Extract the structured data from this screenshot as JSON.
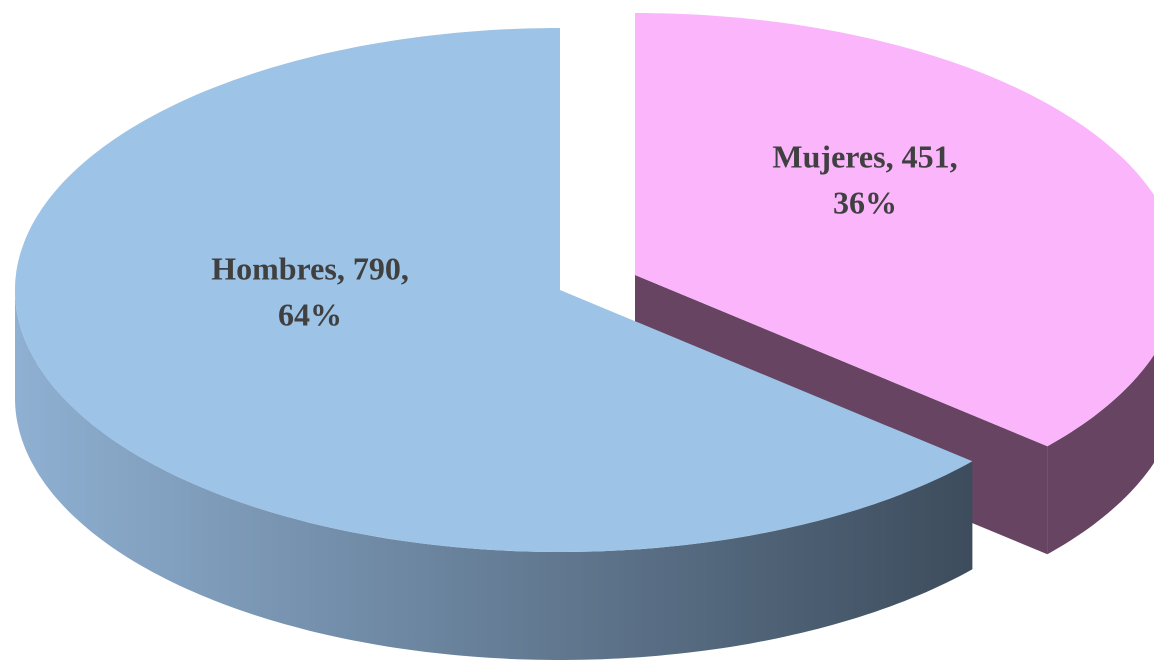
{
  "chart_data": {
    "type": "pie3d",
    "categories": [
      "Mujeres",
      "Hombres"
    ],
    "values": [
      451,
      790
    ],
    "value_labels": [
      [
        "Mujeres, 451,",
        "36%"
      ],
      [
        "Hombres, 790,",
        "64%"
      ]
    ],
    "colors": [
      "#fab5fb",
      "#9dc3e6"
    ],
    "side_colors": [
      "#664462",
      "#3d4c5c"
    ]
  }
}
